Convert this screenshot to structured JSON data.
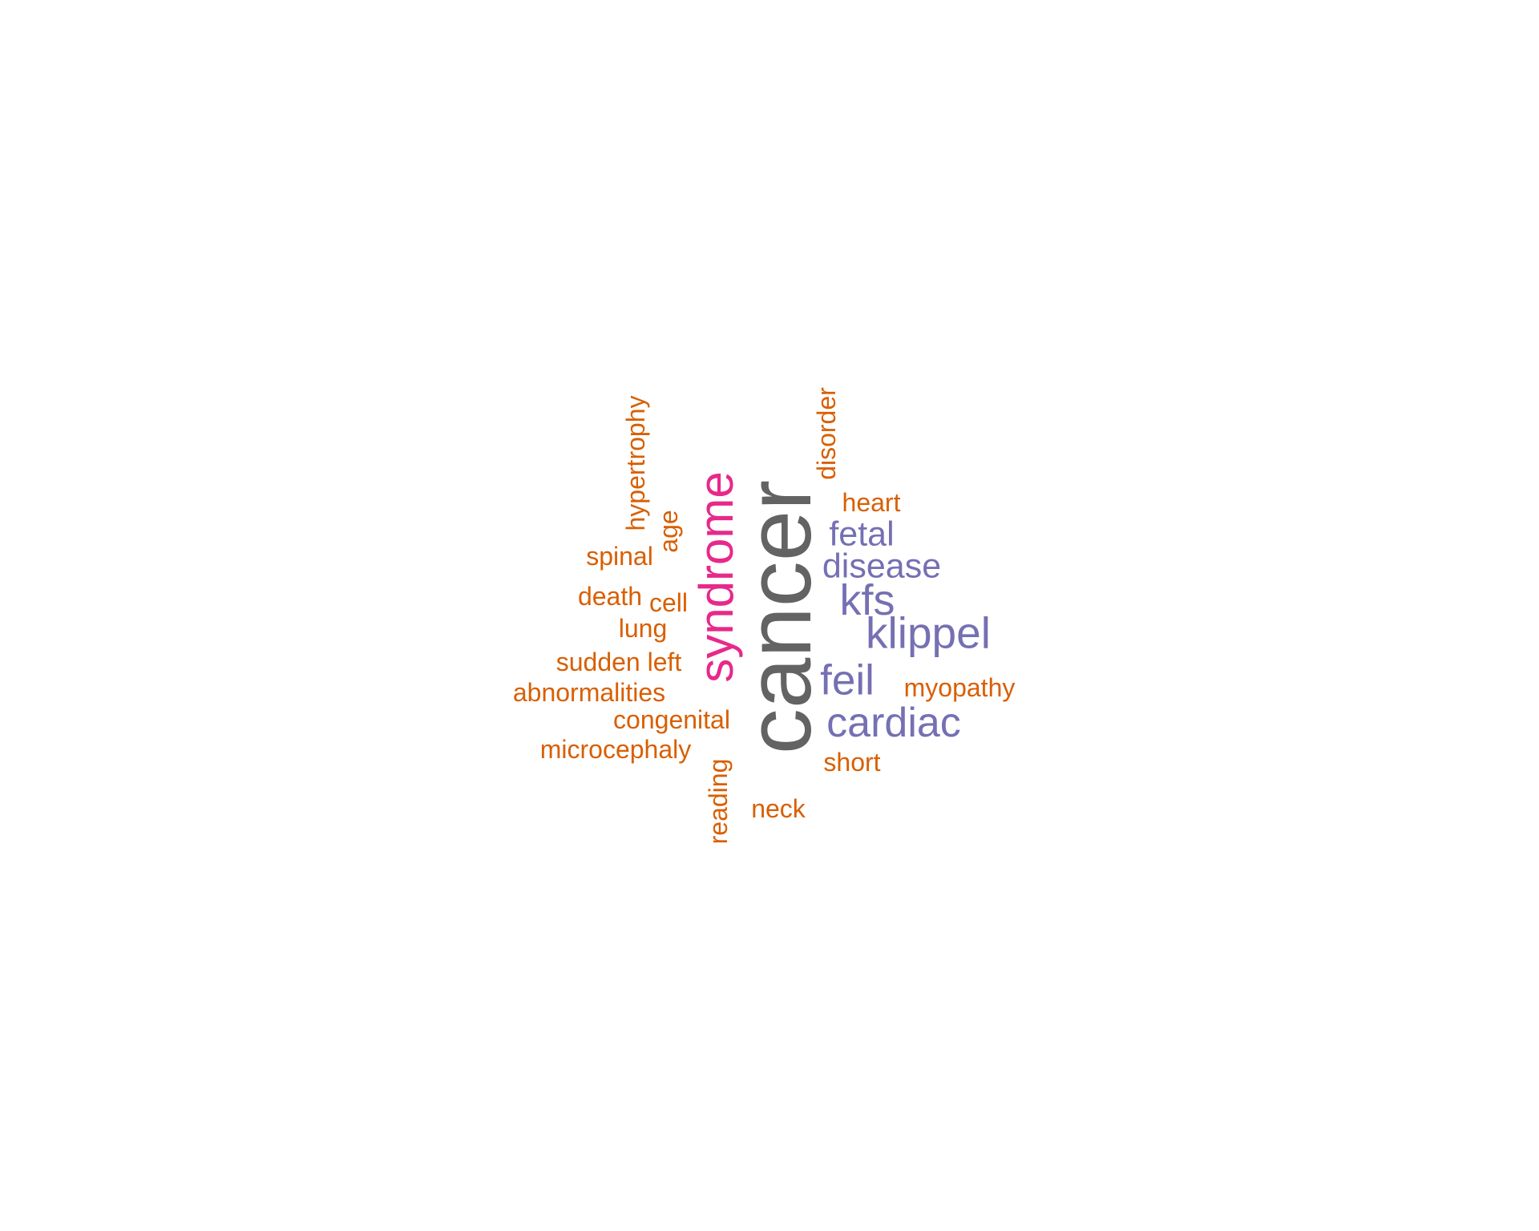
{
  "colors": {
    "background": "#ffffff",
    "gray": "#636363",
    "pink": "#e7298a",
    "purple": "#7570b3",
    "orange": "#d95f02"
  },
  "words": {
    "cancer": "cancer",
    "syndrome": "syndrome",
    "klippel": "klippel",
    "cardiac": "cardiac",
    "kfs": "kfs",
    "feil": "feil",
    "disease": "disease",
    "fetal": "fetal",
    "heart": "heart",
    "disorder": "disorder",
    "myopathy": "myopathy",
    "short": "short",
    "neck": "neck",
    "reading": "reading",
    "microcephaly": "microcephaly",
    "congenital": "congenital",
    "abnormalities": "abnormalities",
    "sudden_left": "sudden left",
    "lung": "lung",
    "death": "death",
    "cell": "cell",
    "spinal": "spinal",
    "age": "age",
    "hypertrophy": "hypertrophy"
  }
}
